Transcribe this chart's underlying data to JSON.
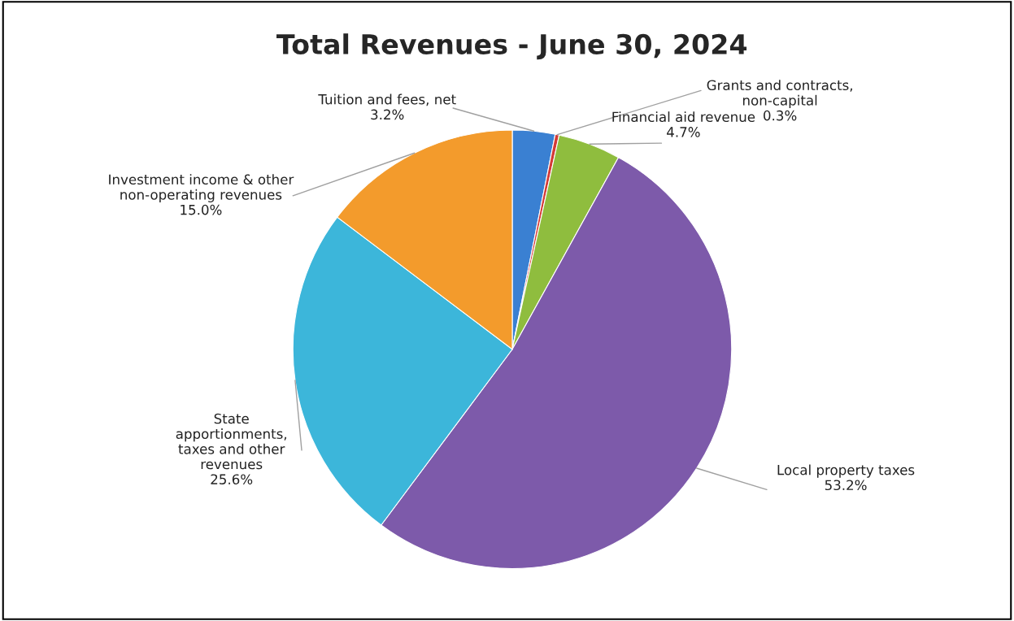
{
  "chart_data": {
    "type": "pie",
    "title": "Total Revenues - June 30, 2024",
    "categories": [
      "Tuition and fees, net",
      "Grants and contracts,\nnon-capital",
      "Financial aid revenue",
      "Local property taxes",
      "State\napportionments,\ntaxes and other\nrevenues",
      "Investment income & other\nnon-operating revenues"
    ],
    "values": [
      3.2,
      0.3,
      4.7,
      53.2,
      25.6,
      15.0
    ],
    "value_labels": [
      "3.2%",
      "0.3%",
      "4.7%",
      "53.2%",
      "25.6%",
      "15.0%"
    ],
    "colors": [
      "#3a80d2",
      "#d43a36",
      "#8fbd3e",
      "#7d5aaa",
      "#3cb6da",
      "#f39b2c"
    ]
  }
}
